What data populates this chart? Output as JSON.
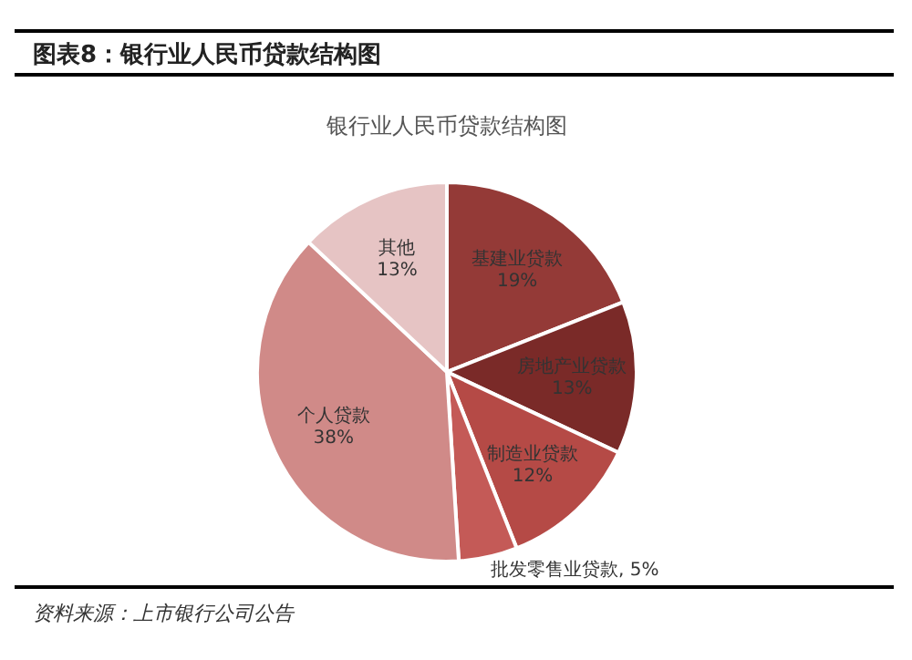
{
  "chart_data": {
    "type": "pie",
    "title": "图表8：银行业人民币贷款结构图",
    "subtitle": "银行业人民币贷款结构图",
    "categories": [
      "基建业贷款",
      "房地产业贷款",
      "制造业贷款",
      "批发零售业贷款",
      "个人贷款",
      "其他"
    ],
    "values": [
      19,
      13,
      12,
      5,
      38,
      13
    ],
    "value_labels": [
      "19%",
      "13%",
      "12%",
      "5%",
      "38%",
      "13%"
    ],
    "colors": [
      "#943a37",
      "#7a2a28",
      "#b54a46",
      "#c45a57",
      "#d08a88",
      "#e6c4c4"
    ],
    "annotations": [
      "资料来源：上市银行公司公告"
    ]
  }
}
